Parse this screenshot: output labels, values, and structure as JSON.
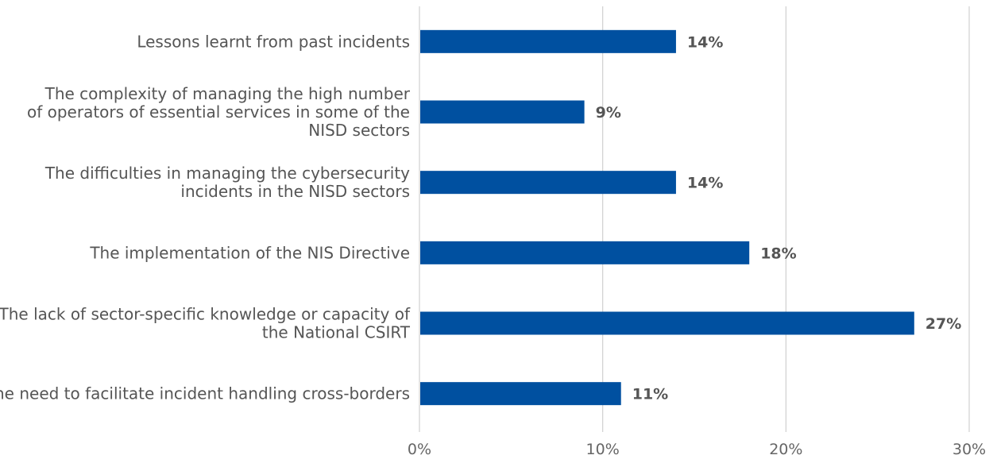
{
  "chart_data": {
    "type": "bar",
    "orientation": "horizontal",
    "categories": [
      [
        "Lessons learnt from past incidents"
      ],
      [
        "The complexity of managing the high number",
        "of operators of essential services in some of the",
        "NISD sectors"
      ],
      [
        "The difficulties in managing the cybersecurity",
        "incidents in the NISD sectors"
      ],
      [
        "The implementation of the NIS Directive"
      ],
      [
        "The lack of sector-specific knowledge or capacity of",
        "the National CSIRT"
      ],
      [
        "The need to facilitate incident handling cross-borders"
      ]
    ],
    "values": [
      14,
      9,
      14,
      18,
      27,
      11
    ],
    "value_labels": [
      "14%",
      "9%",
      "14%",
      "18%",
      "27%",
      "11%"
    ],
    "xlim": [
      0,
      30
    ],
    "xticks": [
      0,
      10,
      20,
      30
    ],
    "xtick_labels": [
      "0%",
      "10%",
      "20%",
      "30%"
    ],
    "grid": true,
    "bar_color": "#0050a0",
    "legend": "none"
  }
}
